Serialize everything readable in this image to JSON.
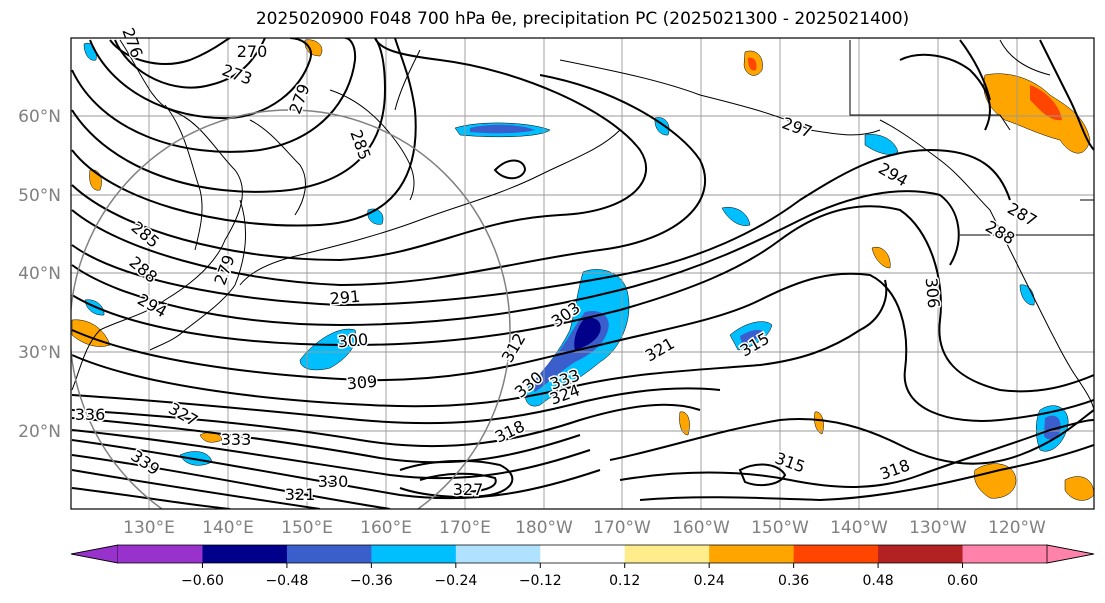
{
  "title": "2025020900 F048 700 hPa θe, precipitation PC (2025021300 - 2025021400)",
  "lat_labels": [
    "60°N",
    "50°N",
    "40°N",
    "30°N",
    "20°N"
  ],
  "lon_labels": [
    "130°E",
    "140°E",
    "150°E",
    "160°E",
    "170°E",
    "180°W",
    "170°W",
    "160°W",
    "150°W",
    "140°W",
    "130°W",
    "120°W"
  ],
  "contour_labels": [
    "270",
    "273",
    "276",
    "279",
    "285",
    "297",
    "294",
    "287",
    "288",
    "285",
    "288",
    "294",
    "279",
    "291",
    "300",
    "303",
    "306",
    "309",
    "315",
    "312",
    "318",
    "321",
    "324",
    "327",
    "330",
    "333",
    "336",
    "339",
    "315",
    "318",
    "321",
    "327",
    "330",
    "333"
  ],
  "colorbar": {
    "ticks": [
      "−0.60",
      "−0.48",
      "−0.36",
      "−0.24",
      "−0.12",
      "0.12",
      "0.24",
      "0.36",
      "0.48",
      "0.60"
    ],
    "colors": [
      "#9932cc",
      "#00008b",
      "#3a5fcd",
      "#00bfff",
      "#b0e2ff",
      "#ffffff",
      "#ffec8b",
      "#ffa500",
      "#ff4500",
      "#b22222",
      "#ff82ab"
    ]
  }
}
